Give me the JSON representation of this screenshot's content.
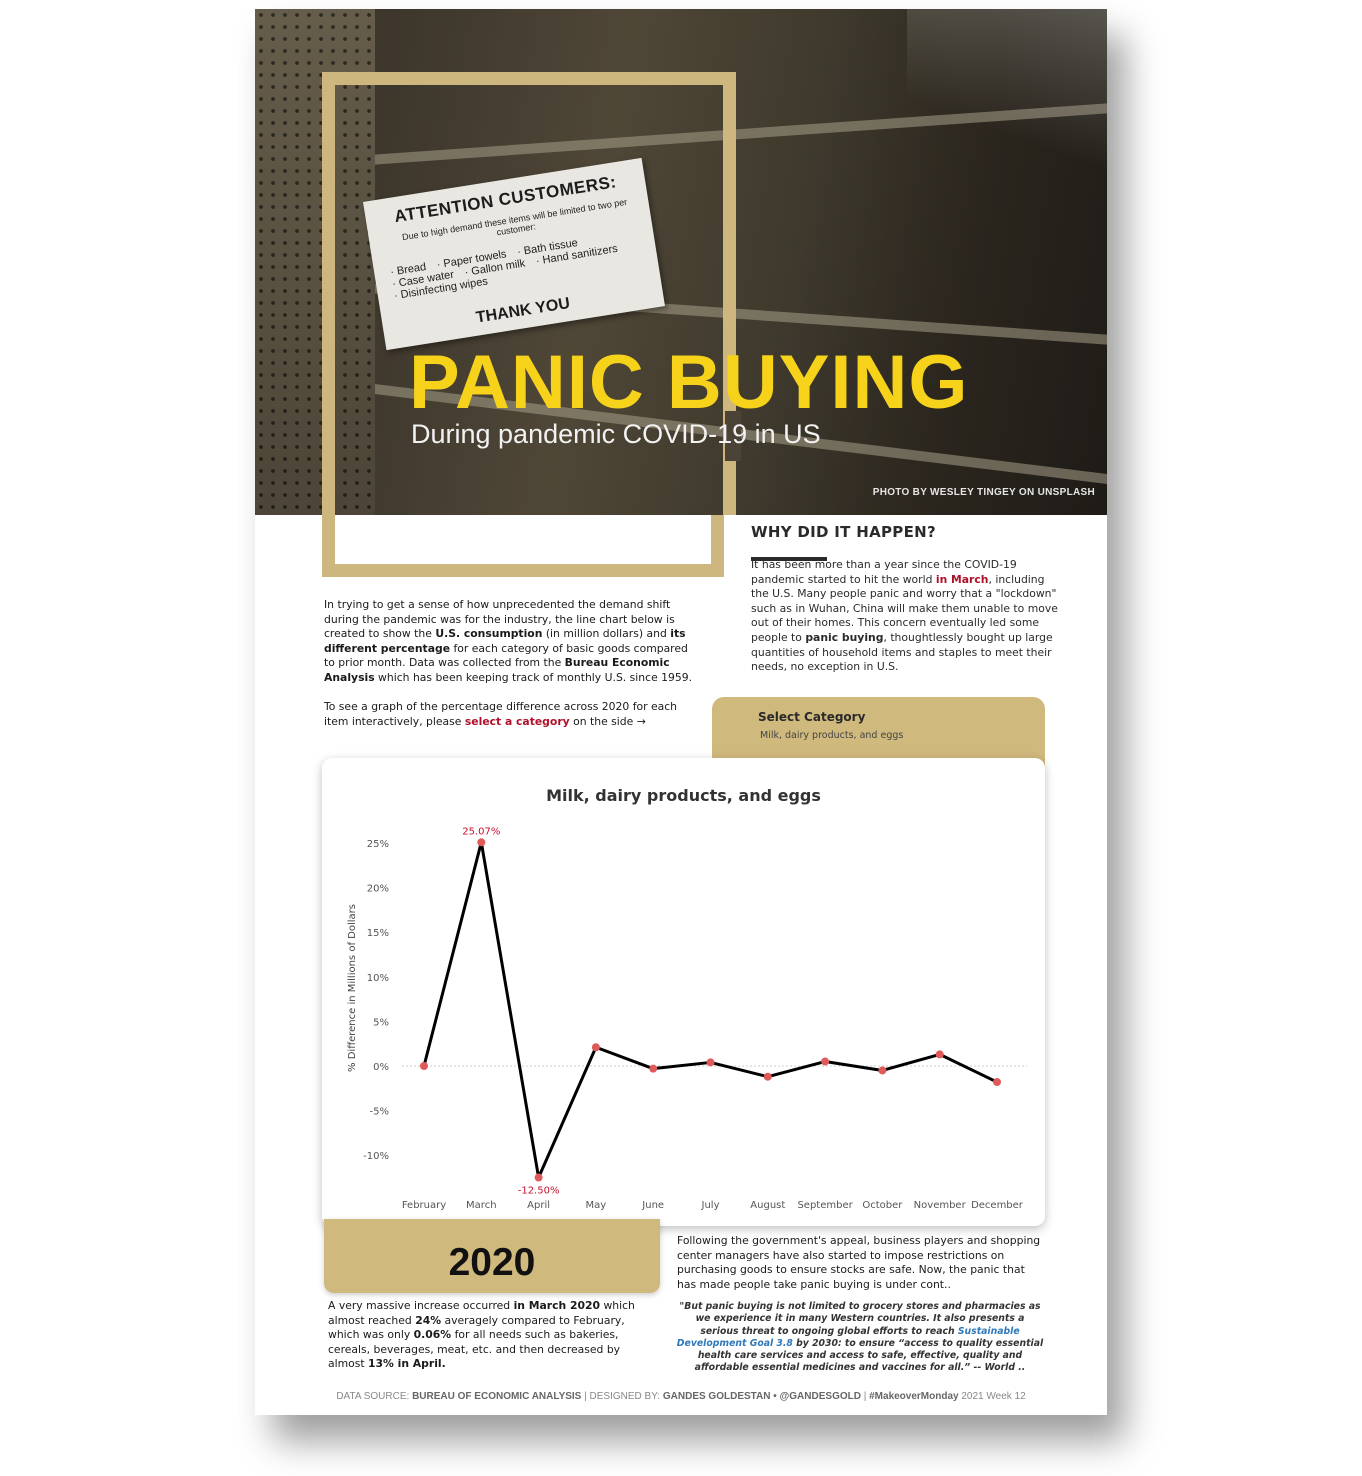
{
  "hero": {
    "title": "PANIC BUYING",
    "subtitle": "During pandemic COVID-19 in US",
    "credit": "PHOTO BY WESLEY TINGEY ON UNSPLASH",
    "sign": {
      "title": "ATTENTION CUSTOMERS:",
      "body": "Due to high demand these items will be limited to two per customer:",
      "items": [
        "· Bread",
        "· Paper towels",
        "· Bath tissue",
        "· Case water",
        "· Gallon milk",
        "· Hand sanitizers",
        "· Disinfecting wipes"
      ],
      "thanks": "THANK YOU"
    }
  },
  "why": {
    "title": "WHY DID IT HAPPEN?",
    "p1": "It has been more than a year since the COVID-19 pandemic started to hit the world ",
    "p1_em": "in March",
    "p2": ", including the U.S. Many people panic and worry that a \"lockdown\" such as in Wuhan, China will make them unable to move out of their homes. This concern eventually led some people to ",
    "p2_em": "panic buying",
    "p3": ", thoughtlessly bought up large quantities of household items and staples to meet their needs, no exception in U.S."
  },
  "intro": {
    "t1": "In trying to get a sense of how unprecedented the demand shift during the pandemic was for the industry, the line chart below is created to show the ",
    "b1": "U.S. consumption",
    "t2": " (in million dollars) and ",
    "b2": "its different percentage",
    "t3": " for each category of basic goods compared to prior month. Data was collected from the ",
    "b3": "Bureau Economic Analysis",
    "t4": " which has been keeping track of monthly U.S. since 1959.",
    "t5": "To see a graph of the percentage difference across 2020 for each item interactively, please ",
    "link": "select a category",
    "t6": " on the side →"
  },
  "select": {
    "label": "Select Category",
    "value": "Milk, dairy products, and eggs"
  },
  "chart_data": {
    "type": "line",
    "title": "Milk, dairy products, and eggs",
    "ylabel": "% Difference in Millions of Dollars",
    "xlabel": "",
    "categories": [
      "February",
      "March",
      "April",
      "May",
      "June",
      "July",
      "August",
      "September",
      "October",
      "November",
      "December"
    ],
    "values": [
      0.0,
      25.07,
      -12.5,
      2.1,
      -0.3,
      0.4,
      -1.2,
      0.5,
      -0.5,
      1.3,
      -1.8
    ],
    "ylim": [
      -13,
      26
    ],
    "yticks": [
      -10,
      -5,
      0,
      5,
      10,
      15,
      20,
      25
    ],
    "ytick_labels": [
      "-10%",
      "-5%",
      "0%",
      "5%",
      "10%",
      "15%",
      "20%",
      "25%"
    ],
    "data_labels": [
      {
        "category": "March",
        "text": "25.07%"
      },
      {
        "category": "April",
        "text": "-12.50%"
      }
    ],
    "line_color": "#000000",
    "marker_color": "#e05a5a",
    "label_color": "#c8102e",
    "grid": false
  },
  "year": "2020",
  "massive": {
    "t1": "A very massive increase occurred ",
    "b1": "in March 2020",
    "t2": " which almost reached ",
    "b2": "24%",
    "t3": " averagely compared to February, which was only ",
    "b3": "0.06%",
    "t4": " for all needs such as bakeries, cereals, beverages, meat, etc. and then decreased by almost ",
    "b4": "13% in April."
  },
  "follow": "Following the government's appeal, business players and shopping center managers have also started to impose restrictions on purchasing goods to ensure stocks are safe. Now, the panic that has made people take panic buying is under cont..",
  "quote": {
    "q1": "\"But panic buying is not limited to grocery stores and pharmacies as we experience it in many Western countries. It also presents a serious threat to ongoing global efforts to reach ",
    "link": "Sustainable Development Goal 3.8",
    "q2": " by 2030: to ensure “access to quality essential health care services and access to safe, effective, quality and affordable essential medicines and vaccines for all.”",
    "attribution": " -- World .."
  },
  "footer": {
    "l1": "DATA SOURCE: ",
    "v1": "BUREAU OF ECONOMIC ANALYSIS",
    "sep1": "  |  DESIGNED BY: ",
    "v2": "GANDES GOLDESTAN • @GANDESGOLD",
    "sep2": "  |  ",
    "v3": "#MakeoverMonday",
    "l3": " 2021 Week 12"
  }
}
